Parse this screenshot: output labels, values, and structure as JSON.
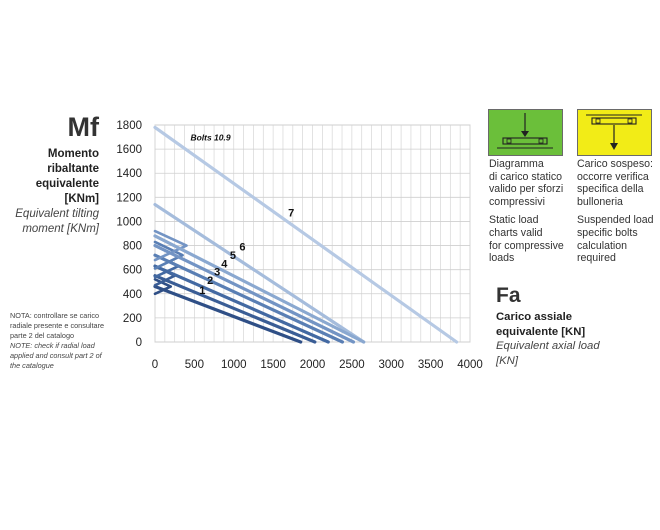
{
  "left_labels": {
    "symbol": "Mf",
    "it_line1": "Momento",
    "it_line2": "ribaltante",
    "it_line3": "equivalente",
    "unit": "[KNm]",
    "en_line1": "Equivalent tilting",
    "en_line2": "moment [KNm]"
  },
  "note": {
    "it": "NOTA: controllare se carico radiale presente e consultare parte 2 del catalogo",
    "en": "NOTE: check if radial load applied and consult part 2 of the catalogue"
  },
  "legend_panels": {
    "static": {
      "icon": "static-load-icon",
      "color": "#6bbf3a",
      "it": [
        "Diagramma",
        "di carico statico",
        "valido per sforzi",
        "compressivi"
      ],
      "en": [
        "Static load",
        "charts valid",
        "for compressive",
        "loads"
      ]
    },
    "suspended": {
      "icon": "suspended-load-icon",
      "color": "#f2ec17",
      "it": [
        "Carico sospeso:",
        "occorre verifica",
        "specifica della",
        "bulloneria"
      ],
      "en": [
        "Suspended load",
        "specific bolts",
        "calculation",
        "required"
      ]
    }
  },
  "right_labels": {
    "symbol": "Fa",
    "it_line1": "Carico assiale",
    "it_line2": "equivalente [KN]",
    "en_line1": "Equivalent axial load",
    "en_line2": "[KN]"
  },
  "chart_data": {
    "type": "line",
    "title": "",
    "xlabel": "",
    "ylabel": "",
    "xlim": [
      0,
      4000
    ],
    "ylim": [
      0,
      1800
    ],
    "xticks": [
      0,
      500,
      1000,
      1500,
      2000,
      2500,
      3000,
      3500,
      4000
    ],
    "yticks": [
      0,
      200,
      400,
      600,
      800,
      1000,
      1200,
      1400,
      1600,
      1800
    ],
    "grid": true,
    "annotation": "Bolts 10.9",
    "series": [
      {
        "name": "1",
        "color": "#2f4f86",
        "x": [
          0,
          1850
        ],
        "y": [
          460,
          0
        ],
        "knee": [
          [
            0,
            400
          ],
          [
            200,
            460
          ],
          [
            0,
            520
          ]
        ]
      },
      {
        "name": "2",
        "color": "#3a5d95",
        "x": [
          0,
          2030
        ],
        "y": [
          550,
          0
        ],
        "knee": [
          [
            0,
            470
          ],
          [
            250,
            550
          ],
          [
            0,
            630
          ]
        ]
      },
      {
        "name": "3",
        "color": "#4369a2",
        "x": [
          0,
          2200
        ],
        "y": [
          630,
          0
        ],
        "knee": [
          [
            0,
            540
          ],
          [
            300,
            630
          ],
          [
            0,
            720
          ]
        ]
      },
      {
        "name": "4",
        "color": "#5a7fb4",
        "x": [
          0,
          2380
        ],
        "y": [
          720,
          0
        ],
        "knee": [
          [
            0,
            610
          ],
          [
            350,
            720
          ],
          [
            0,
            830
          ]
        ]
      },
      {
        "name": "5",
        "color": "#7394c4",
        "x": [
          0,
          2520
        ],
        "y": [
          800,
          0
        ],
        "knee": [
          [
            0,
            680
          ],
          [
            400,
            800
          ],
          [
            0,
            920
          ]
        ]
      },
      {
        "name": "6",
        "color": "#8aa8d0",
        "x": [
          0,
          2650
        ],
        "y": [
          880,
          0
        ]
      },
      {
        "name": "7",
        "color": "#b6c9e4",
        "x": [
          0,
          3830
        ],
        "y": [
          1780,
          0
        ]
      }
    ],
    "extra_lines": [
      {
        "color": "#a5bcdc",
        "x": [
          0,
          2650
        ],
        "y": [
          1140,
          0
        ]
      }
    ],
    "labels": [
      {
        "text": "1",
        "x": 600,
        "y": 400
      },
      {
        "text": "2",
        "x": 700,
        "y": 480
      },
      {
        "text": "3",
        "x": 790,
        "y": 550
      },
      {
        "text": "4",
        "x": 880,
        "y": 620
      },
      {
        "text": "5",
        "x": 990,
        "y": 690
      },
      {
        "text": "6",
        "x": 1110,
        "y": 760
      },
      {
        "text": "7",
        "x": 1730,
        "y": 1040
      }
    ]
  }
}
